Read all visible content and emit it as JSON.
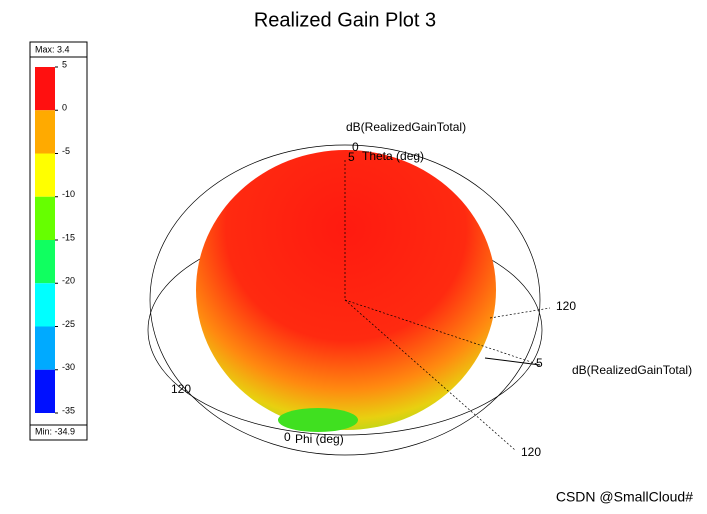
{
  "chart_data": {
    "type": "radiation-3d",
    "title": "Realized Gain Plot 3",
    "colorbar": {
      "max": {
        "value": 3.4,
        "label": "Max: 3.4"
      },
      "min": {
        "value": -34.9,
        "label": "Min: -34.9"
      },
      "ticks": [
        5,
        0,
        -5,
        -10,
        -15,
        -20,
        -25,
        -30,
        -35
      ],
      "colors": [
        "#ff1010",
        "#ffaa00",
        "#ffff00",
        "#66ff00",
        "#10ff60",
        "#00ffff",
        "#00aaff",
        "#0010ff"
      ]
    },
    "annotations": [
      {
        "text": "dB(RealizedGainTotal)"
      },
      {
        "text": "0"
      },
      {
        "text": "5"
      },
      {
        "text": "Theta (deg)"
      },
      {
        "text": "120"
      },
      {
        "text": "5"
      },
      {
        "text": "dB(RealizedGainTotal)"
      },
      {
        "text": "120"
      },
      {
        "text": "120"
      },
      {
        "text": "0"
      },
      {
        "text": "Phi (deg)"
      }
    ],
    "watermark": "CSDN @SmallCloud#"
  }
}
